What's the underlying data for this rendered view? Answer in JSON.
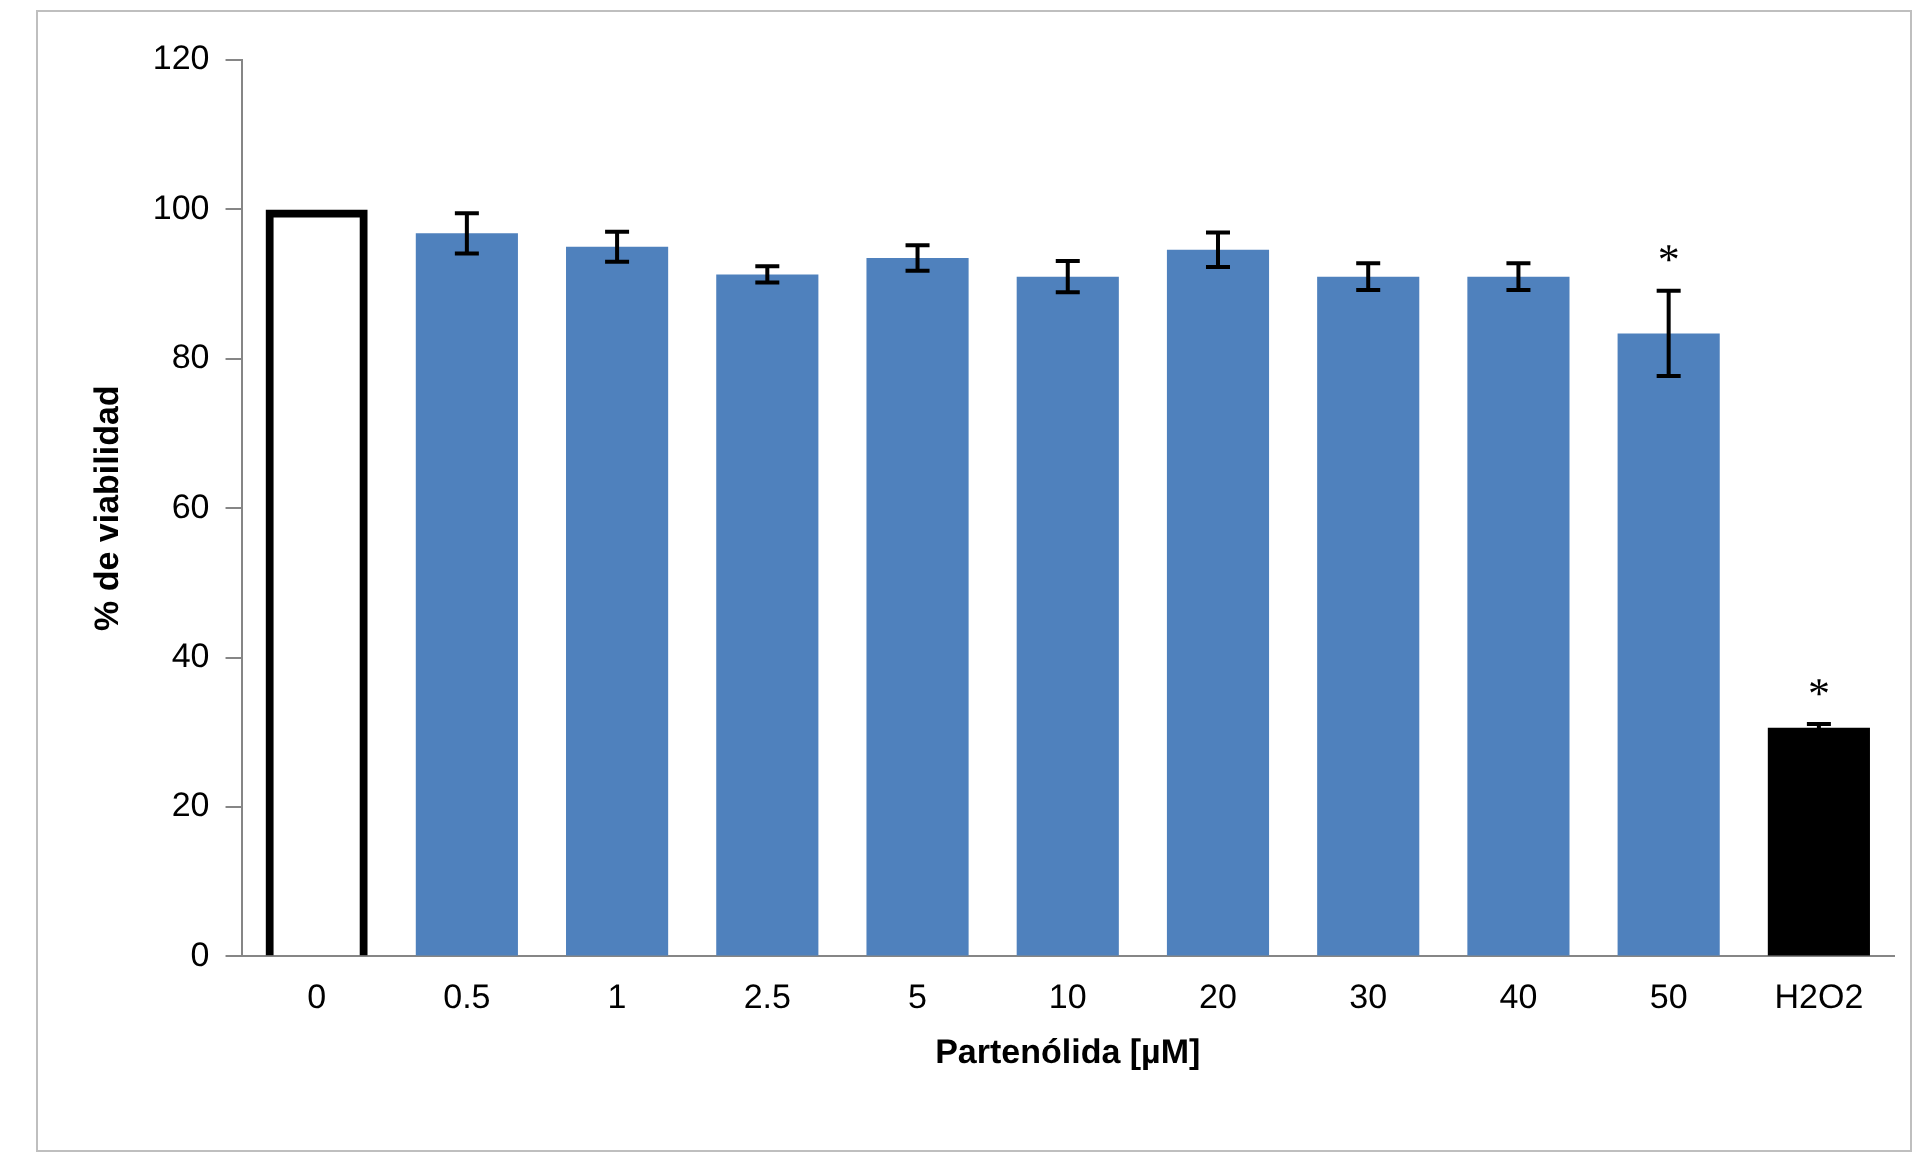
{
  "chart_data": {
    "type": "bar",
    "xlabel": "Partenólida [µM]",
    "ylabel": "% de viabilidad",
    "categories": [
      "0",
      "0.5",
      "1",
      "2.5",
      "5",
      "10",
      "20",
      "30",
      "40",
      "50",
      "H2O2"
    ],
    "values": [
      100,
      96.8,
      95,
      91.3,
      93.5,
      91,
      94.6,
      91,
      91,
      83.4,
      30.6
    ],
    "errors": [
      null,
      2.7,
      2,
      1.1,
      1.7,
      2.1,
      2.3,
      1.8,
      1.8,
      5.7,
      0.5
    ],
    "colors": [
      "#000000",
      "#4f81bd",
      "#4f81bd",
      "#4f81bd",
      "#4f81bd",
      "#4f81bd",
      "#4f81bd",
      "#4f81bd",
      "#4f81bd",
      "#4f81bd",
      "#000000"
    ],
    "ylim": [
      0,
      120
    ],
    "yticks": [
      0,
      20,
      40,
      60,
      80,
      100,
      120
    ],
    "grid": false,
    "legend": false,
    "annotations": [
      {
        "text": "*",
        "x": "50",
        "y": 89.1
      },
      {
        "text": "*",
        "x": "H2O2",
        "y": 31.1
      }
    ]
  }
}
